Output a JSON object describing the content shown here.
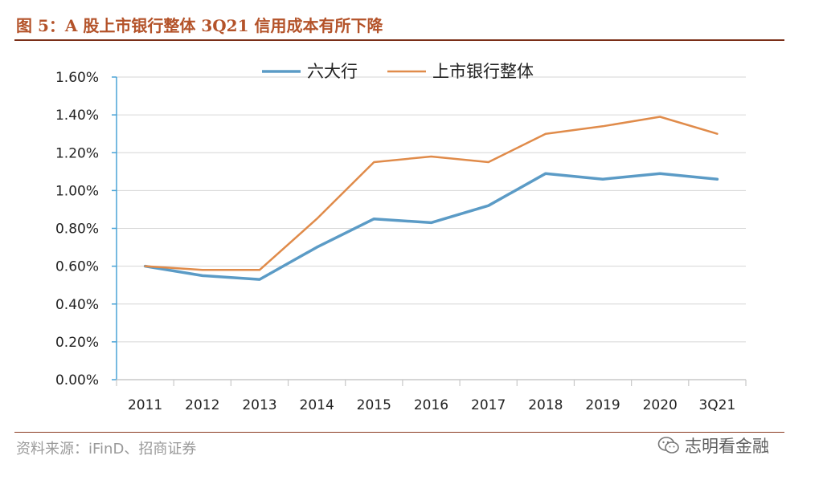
{
  "header": {
    "title": "图 5：A 股上市银行整体 3Q21 信用成本有所下降"
  },
  "footer": {
    "source": "资料来源：iFinD、招商证券",
    "watermark": "志明看金融"
  },
  "chart_data": {
    "type": "line",
    "title": "图 5：A 股上市银行整体 3Q21 信用成本有所下降",
    "xlabel": "",
    "ylabel": "",
    "categories": [
      "2011",
      "2012",
      "2013",
      "2014",
      "2015",
      "2016",
      "2017",
      "2018",
      "2019",
      "2020",
      "3Q21"
    ],
    "yticks": [
      0,
      0.2,
      0.4,
      0.6,
      0.8,
      1.0,
      1.2,
      1.4,
      1.6
    ],
    "ytick_labels": [
      "0.00%",
      "0.20%",
      "0.40%",
      "0.60%",
      "0.80%",
      "1.00%",
      "1.20%",
      "1.40%",
      "1.60%"
    ],
    "ylim": [
      0,
      1.6
    ],
    "grid": true,
    "legend_position": "top",
    "series": [
      {
        "name": "六大行",
        "color": "#5b9bc6",
        "values": [
          0.6,
          0.55,
          0.53,
          0.7,
          0.85,
          0.83,
          0.92,
          1.09,
          1.06,
          1.09,
          1.06
        ]
      },
      {
        "name": "上市银行整体",
        "color": "#e08b4a",
        "values": [
          0.6,
          0.58,
          0.58,
          0.85,
          1.15,
          1.18,
          1.15,
          1.3,
          1.34,
          1.39,
          1.3
        ]
      }
    ]
  }
}
